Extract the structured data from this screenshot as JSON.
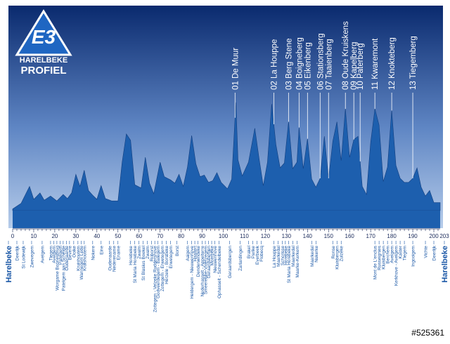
{
  "logo": {
    "mark": "E3",
    "name": "HARELBEKE",
    "subtitle": "PROFIEL"
  },
  "watermark": "#525361",
  "colors": {
    "sky_top": "#0a2a6e",
    "sky_bottom": "#b6ccea",
    "profile": "#1d5fae",
    "label": "#ffffff",
    "town": "#1a57a6",
    "tick": "#1a2a5a"
  },
  "chart_data": {
    "type": "area",
    "title": "",
    "xlabel": "",
    "ylabel": "",
    "xlim": [
      0,
      203
    ],
    "x_ticks": [
      0,
      10,
      20,
      30,
      40,
      50,
      60,
      70,
      80,
      90,
      100,
      110,
      120,
      130,
      140,
      150,
      160,
      170,
      180,
      190,
      200,
      203
    ],
    "profile": [
      [
        0,
        2
      ],
      [
        4,
        9
      ],
      [
        8,
        30
      ],
      [
        10,
        14
      ],
      [
        13,
        22
      ],
      [
        15,
        13
      ],
      [
        18,
        18
      ],
      [
        21,
        12
      ],
      [
        24,
        20
      ],
      [
        26,
        15
      ],
      [
        28,
        22
      ],
      [
        30,
        45
      ],
      [
        32,
        30
      ],
      [
        34,
        50
      ],
      [
        36,
        25
      ],
      [
        38,
        19
      ],
      [
        40,
        14
      ],
      [
        42,
        31
      ],
      [
        44,
        15
      ],
      [
        47,
        12
      ],
      [
        50,
        12
      ],
      [
        52,
        60
      ],
      [
        54,
        95
      ],
      [
        56,
        87
      ],
      [
        58,
        32
      ],
      [
        61,
        28
      ],
      [
        63,
        66
      ],
      [
        65,
        34
      ],
      [
        67,
        21
      ],
      [
        70,
        60
      ],
      [
        72,
        42
      ],
      [
        75,
        38
      ],
      [
        77,
        34
      ],
      [
        79,
        45
      ],
      [
        81,
        30
      ],
      [
        83,
        54
      ],
      [
        85,
        93
      ],
      [
        87,
        58
      ],
      [
        89,
        42
      ],
      [
        91,
        44
      ],
      [
        93,
        35
      ],
      [
        95,
        37
      ],
      [
        97,
        47
      ],
      [
        99,
        35
      ],
      [
        102,
        27
      ],
      [
        104,
        39
      ],
      [
        106,
        134
      ],
      [
        107,
        63
      ],
      [
        109,
        43
      ],
      [
        112,
        60
      ],
      [
        115,
        102
      ],
      [
        117,
        65
      ],
      [
        119,
        31
      ],
      [
        121,
        60
      ],
      [
        123,
        132
      ],
      [
        125,
        82
      ],
      [
        127,
        53
      ],
      [
        129,
        59
      ],
      [
        131,
        110
      ],
      [
        133,
        52
      ],
      [
        135,
        60
      ],
      [
        136,
        103
      ],
      [
        138,
        52
      ],
      [
        140,
        89
      ],
      [
        142,
        39
      ],
      [
        144,
        29
      ],
      [
        146,
        40
      ],
      [
        148,
        92
      ],
      [
        150,
        40
      ],
      [
        152,
        86
      ],
      [
        154,
        110
      ],
      [
        156,
        62
      ],
      [
        158,
        126
      ],
      [
        160,
        66
      ],
      [
        162,
        88
      ],
      [
        164,
        92
      ],
      [
        166,
        30
      ],
      [
        168,
        20
      ],
      [
        170,
        85
      ],
      [
        172,
        126
      ],
      [
        174,
        106
      ],
      [
        176,
        36
      ],
      [
        178,
        54
      ],
      [
        180,
        124
      ],
      [
        182,
        56
      ],
      [
        184,
        40
      ],
      [
        186,
        35
      ],
      [
        188,
        35
      ],
      [
        190,
        40
      ],
      [
        192,
        53
      ],
      [
        194,
        29
      ],
      [
        196,
        18
      ],
      [
        198,
        25
      ],
      [
        200,
        10
      ],
      [
        203,
        10
      ]
    ],
    "climbs": [
      {
        "label": "01 De Muur",
        "km": 105.6
      },
      {
        "label": "02 La Houppe",
        "km": 124
      },
      {
        "label": "03 Berg Stene",
        "km": 131
      },
      {
        "label": "04 Boigneberg",
        "km": 136
      },
      {
        "label": "05 Eikenberg",
        "km": 140
      },
      {
        "label": "06 Stationsberg",
        "km": 146
      },
      {
        "label": "07 Taaienberg",
        "km": 150
      },
      {
        "label": "08 Oude Kruiskens",
        "km": 158
      },
      {
        "label": "09 Kapelberg",
        "km": 162
      },
      {
        "label": "10 Paterberg",
        "km": 165
      },
      {
        "label": "11 Kwaremont",
        "km": 172
      },
      {
        "label": "12 Knokteberg",
        "km": 180
      },
      {
        "label": "13 Tiegemberg",
        "km": 190
      }
    ],
    "towns": [
      {
        "name": "Harelbeke",
        "km": -2,
        "bold": true
      },
      {
        "name": "Deerlijk",
        "km": 2
      },
      {
        "name": "St Lodewijk",
        "km": 5
      },
      {
        "name": "Zwevegem",
        "km": 9
      },
      {
        "name": "Avelgem",
        "km": 14
      },
      {
        "name": "Tiegem",
        "km": 18
      },
      {
        "name": "Avelgem",
        "km": 19.5
      },
      {
        "name": "Worgame Bonnesbrug",
        "km": 21
      },
      {
        "name": "Patelgem",
        "km": 22.5
      },
      {
        "name": "Patelgem aan Schelde",
        "km": 24
      },
      {
        "name": "Oudenaarde",
        "km": 25.5
      },
      {
        "name": "Bevere",
        "km": 27
      },
      {
        "name": "Ooike",
        "km": 29
      },
      {
        "name": "Kruishoutem",
        "km": 31
      },
      {
        "name": "Wannegem Lede",
        "km": 32.5
      },
      {
        "name": "Kruishoutem",
        "km": 34
      },
      {
        "name": "Nokere",
        "km": 38
      },
      {
        "name": "Eine",
        "km": 42
      },
      {
        "name": "Oudenaarde",
        "km": 46
      },
      {
        "name": "Nederename",
        "km": 48
      },
      {
        "name": "Ename",
        "km": 50
      },
      {
        "name": "Horebeke",
        "km": 56
      },
      {
        "name": "St Maria Horebeke",
        "km": 58
      },
      {
        "name": "Zwalm",
        "km": 60
      },
      {
        "name": "St Blasius Boekel",
        "km": 62
      },
      {
        "name": "Zwalm",
        "km": 64
      },
      {
        "name": "Roborst",
        "km": 66
      },
      {
        "name": "Zottegem - Velzeke Ruddershove",
        "km": 67.5
      },
      {
        "name": "Godveerdegem - Balegem",
        "km": 69
      },
      {
        "name": "Zottegem - Erwetegem",
        "km": 71
      },
      {
        "name": "Herzele - Borsbeke",
        "km": 73
      },
      {
        "name": "Erwetegem",
        "km": 75
      },
      {
        "name": "Borst",
        "km": 78
      },
      {
        "name": "Aaigem",
        "km": 83
      },
      {
        "name": "Heldergem - Nieuwenhove",
        "km": 85
      },
      {
        "name": "Haaltert",
        "km": 86.5
      },
      {
        "name": "Denderwindeke",
        "km": 88
      },
      {
        "name": "Nederhasselt - Appelterre",
        "km": 90
      },
      {
        "name": "Smeerebbe-Vloerzegem",
        "km": 91.5
      },
      {
        "name": "Geraardsbergen",
        "km": 93
      },
      {
        "name": "Moerbeke",
        "km": 94.5
      },
      {
        "name": "Nieuwenhove",
        "km": 96
      },
      {
        "name": "Ophasselt - Schendelbeke",
        "km": 98
      },
      {
        "name": "Geraardsbergen",
        "km": 103
      },
      {
        "name": "Zarlardingen",
        "km": 108
      },
      {
        "name": "Brakel",
        "km": 112
      },
      {
        "name": "Parike",
        "km": 114
      },
      {
        "name": "Everbeek",
        "km": 116
      },
      {
        "name": "Flobecq",
        "km": 118
      },
      {
        "name": "La Houppe",
        "km": 124
      },
      {
        "name": "Maarkedal",
        "km": 126
      },
      {
        "name": "Schorisse",
        "km": 128
      },
      {
        "name": "Horebeke",
        "km": 129.5
      },
      {
        "name": "St Maria Horebeke",
        "km": 131
      },
      {
        "name": "Maarkedal",
        "km": 133
      },
      {
        "name": "Maarke-Kerkem",
        "km": 135
      },
      {
        "name": "Maarkedal",
        "km": 142
      },
      {
        "name": "Nukerke",
        "km": 144
      },
      {
        "name": "Ronse",
        "km": 152
      },
      {
        "name": "Kluisbergen",
        "km": 154
      },
      {
        "name": "Zulzeke",
        "km": 156
      },
      {
        "name": "Mont de L'enclus",
        "km": 172
      },
      {
        "name": "Russeignies",
        "km": 174
      },
      {
        "name": "Kluisbergen",
        "km": 176
      },
      {
        "name": "Berchem",
        "km": 178
      },
      {
        "name": "Avelgem",
        "km": 180
      },
      {
        "name": "Kerkhove - Avelgem",
        "km": 182
      },
      {
        "name": "Kaster",
        "km": 184
      },
      {
        "name": "Tiegem",
        "km": 186
      },
      {
        "name": "Ingooigem",
        "km": 190
      },
      {
        "name": "Vichte",
        "km": 196
      },
      {
        "name": "Deerlijk",
        "km": 200
      },
      {
        "name": "Harelbeke",
        "km": 205,
        "bold": true
      }
    ]
  }
}
